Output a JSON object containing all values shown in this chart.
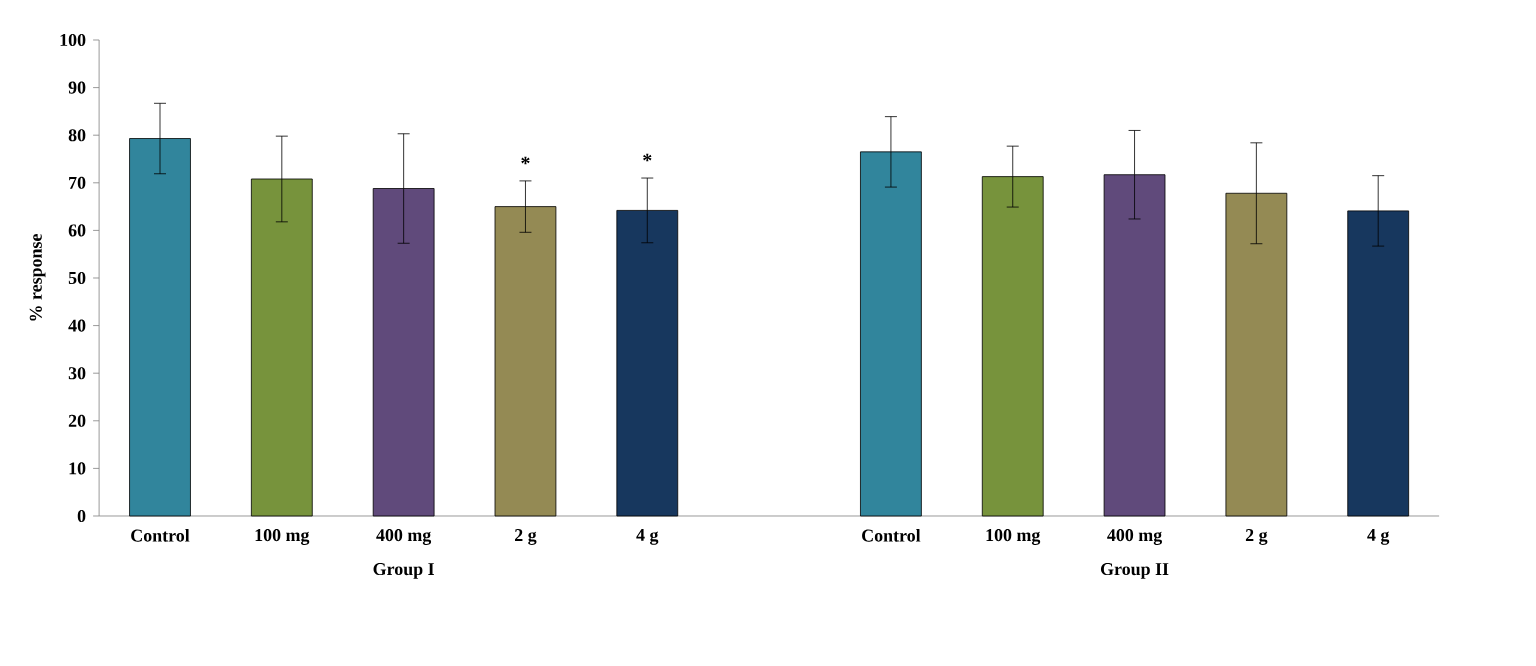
{
  "chart_data": {
    "type": "bar",
    "ylabel": "% response",
    "categories": [
      "Control",
      "100 mg",
      "400 mg",
      "2 g",
      "4 g",
      null,
      "Control",
      "100 mg",
      "400 mg",
      "2 g",
      "4 g"
    ],
    "values": [
      79.3,
      70.8,
      68.8,
      65.0,
      64.2,
      null,
      76.5,
      71.3,
      71.7,
      67.8,
      64.1
    ],
    "errors": [
      7.4,
      9.0,
      11.5,
      5.4,
      6.8,
      null,
      7.4,
      6.4,
      9.3,
      10.6,
      7.4
    ],
    "colors": [
      "#31859c",
      "#77933c",
      "#604a7b",
      "#948a54",
      "#17375e",
      "#ffffff",
      "#31859c",
      "#77933c",
      "#604a7b",
      "#948a54",
      "#17375e"
    ],
    "ylim": [
      0,
      100
    ],
    "yticks": [
      0,
      10,
      20,
      30,
      40,
      50,
      60,
      70,
      80,
      90,
      100
    ],
    "value_labels": [
      null,
      null,
      null,
      "*",
      "*",
      null,
      null,
      null,
      null,
      null,
      null
    ],
    "annotations": [
      "Group I",
      "Group II"
    ],
    "grid": false
  }
}
